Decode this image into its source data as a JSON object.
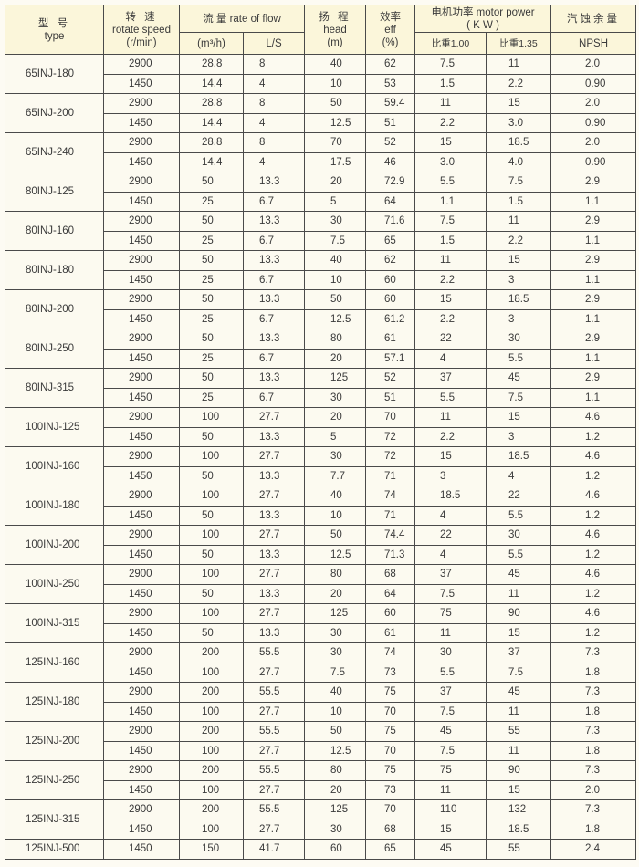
{
  "header": {
    "type_zh": "型 号",
    "type_en": "type",
    "speed_zh": "转 速",
    "speed_en": "rotate speed",
    "speed_unit": "(r/min)",
    "flow": "流 量 rate of flow",
    "flow_m3h": "(m³/h)",
    "flow_ls": "L/S",
    "head_zh": "扬 程",
    "head_en": "head",
    "head_unit": "(m)",
    "eff_zh": "效率",
    "eff_en": "eff",
    "eff_unit": "(%)",
    "power": "电机功率 motor power",
    "power_unit": "( K W )",
    "power_100": "比重1.00",
    "power_135": "比重1.35",
    "npsh_zh": "汽蚀余量",
    "npsh_en": "NPSH"
  },
  "models": [
    {
      "type": "65INJ-180",
      "rows": [
        [
          "2900",
          "28.8",
          "8",
          "40",
          "62",
          "7.5",
          "11",
          "2.0"
        ],
        [
          "1450",
          "14.4",
          "4",
          "10",
          "53",
          "1.5",
          "2.2",
          "0.90"
        ]
      ]
    },
    {
      "type": "65INJ-200",
      "rows": [
        [
          "2900",
          "28.8",
          "8",
          "50",
          "59.4",
          "11",
          "15",
          "2.0"
        ],
        [
          "1450",
          "14.4",
          "4",
          "12.5",
          "51",
          "2.2",
          "3.0",
          "0.90"
        ]
      ]
    },
    {
      "type": "65INJ-240",
      "rows": [
        [
          "2900",
          "28.8",
          "8",
          "70",
          "52",
          "15",
          "18.5",
          "2.0"
        ],
        [
          "1450",
          "14.4",
          "4",
          "17.5",
          "46",
          "3.0",
          "4.0",
          "0.90"
        ]
      ]
    },
    {
      "type": "80INJ-125",
      "rows": [
        [
          "2900",
          "50",
          "13.3",
          "20",
          "72.9",
          "5.5",
          "7.5",
          "2.9"
        ],
        [
          "1450",
          "25",
          "6.7",
          "5",
          "64",
          "1.1",
          "1.5",
          "1.1"
        ]
      ]
    },
    {
      "type": "80INJ-160",
      "rows": [
        [
          "2900",
          "50",
          "13.3",
          "30",
          "71.6",
          "7.5",
          "11",
          "2.9"
        ],
        [
          "1450",
          "25",
          "6.7",
          "7.5",
          "65",
          "1.5",
          "2.2",
          "1.1"
        ]
      ]
    },
    {
      "type": "80INJ-180",
      "rows": [
        [
          "2900",
          "50",
          "13.3",
          "40",
          "62",
          "11",
          "15",
          "2.9"
        ],
        [
          "1450",
          "25",
          "6.7",
          "10",
          "60",
          "2.2",
          "3",
          "1.1"
        ]
      ]
    },
    {
      "type": "80INJ-200",
      "rows": [
        [
          "2900",
          "50",
          "13.3",
          "50",
          "60",
          "15",
          "18.5",
          "2.9"
        ],
        [
          "1450",
          "25",
          "6.7",
          "12.5",
          "61.2",
          "2.2",
          "3",
          "1.1"
        ]
      ]
    },
    {
      "type": "80INJ-250",
      "rows": [
        [
          "2900",
          "50",
          "13.3",
          "80",
          "61",
          "22",
          "30",
          "2.9"
        ],
        [
          "1450",
          "25",
          "6.7",
          "20",
          "57.1",
          "4",
          "5.5",
          "1.1"
        ]
      ]
    },
    {
      "type": "80INJ-315",
      "rows": [
        [
          "2900",
          "50",
          "13.3",
          "125",
          "52",
          "37",
          "45",
          "2.9"
        ],
        [
          "1450",
          "25",
          "6.7",
          "30",
          "51",
          "5.5",
          "7.5",
          "1.1"
        ]
      ]
    },
    {
      "type": "100INJ-125",
      "rows": [
        [
          "2900",
          "100",
          "27.7",
          "20",
          "70",
          "11",
          "15",
          "4.6"
        ],
        [
          "1450",
          "50",
          "13.3",
          "5",
          "72",
          "2.2",
          "3",
          "1.2"
        ]
      ]
    },
    {
      "type": "100INJ-160",
      "rows": [
        [
          "2900",
          "100",
          "27.7",
          "30",
          "72",
          "15",
          "18.5",
          "4.6"
        ],
        [
          "1450",
          "50",
          "13.3",
          "7.7",
          "71",
          "3",
          "4",
          "1.2"
        ]
      ]
    },
    {
      "type": "100INJ-180",
      "rows": [
        [
          "2900",
          "100",
          "27.7",
          "40",
          "74",
          "18.5",
          "22",
          "4.6"
        ],
        [
          "1450",
          "50",
          "13.3",
          "10",
          "71",
          "4",
          "5.5",
          "1.2"
        ]
      ]
    },
    {
      "type": "100INJ-200",
      "rows": [
        [
          "2900",
          "100",
          "27.7",
          "50",
          "74.4",
          "22",
          "30",
          "4.6"
        ],
        [
          "1450",
          "50",
          "13.3",
          "12.5",
          "71.3",
          "4",
          "5.5",
          "1.2"
        ]
      ]
    },
    {
      "type": "100INJ-250",
      "rows": [
        [
          "2900",
          "100",
          "27.7",
          "80",
          "68",
          "37",
          "45",
          "4.6"
        ],
        [
          "1450",
          "50",
          "13.3",
          "20",
          "64",
          "7.5",
          "11",
          "1.2"
        ]
      ]
    },
    {
      "type": "100INJ-315",
      "rows": [
        [
          "2900",
          "100",
          "27.7",
          "125",
          "60",
          "75",
          "90",
          "4.6"
        ],
        [
          "1450",
          "50",
          "13.3",
          "30",
          "61",
          "11",
          "15",
          "1.2"
        ]
      ]
    },
    {
      "type": "125INJ-160",
      "rows": [
        [
          "2900",
          "200",
          "55.5",
          "30",
          "74",
          "30",
          "37",
          "7.3"
        ],
        [
          "1450",
          "100",
          "27.7",
          "7.5",
          "73",
          "5.5",
          "7.5",
          "1.8"
        ]
      ]
    },
    {
      "type": "125INJ-180",
      "rows": [
        [
          "2900",
          "200",
          "55.5",
          "40",
          "75",
          "37",
          "45",
          "7.3"
        ],
        [
          "1450",
          "100",
          "27.7",
          "10",
          "70",
          "7.5",
          "11",
          "1.8"
        ]
      ]
    },
    {
      "type": "125INJ-200",
      "rows": [
        [
          "2900",
          "200",
          "55.5",
          "50",
          "75",
          "45",
          "55",
          "7.3"
        ],
        [
          "1450",
          "100",
          "27.7",
          "12.5",
          "70",
          "7.5",
          "11",
          "1.8"
        ]
      ]
    },
    {
      "type": "125INJ-250",
      "rows": [
        [
          "2900",
          "200",
          "55.5",
          "80",
          "75",
          "75",
          "90",
          "7.3"
        ],
        [
          "1450",
          "100",
          "27.7",
          "20",
          "73",
          "11",
          "15",
          "2.0"
        ]
      ]
    },
    {
      "type": "125INJ-315",
      "rows": [
        [
          "2900",
          "200",
          "55.5",
          "125",
          "70",
          "110",
          "132",
          "7.3"
        ],
        [
          "1450",
          "100",
          "27.7",
          "30",
          "68",
          "15",
          "18.5",
          "1.8"
        ]
      ]
    },
    {
      "type": "125INJ-500",
      "rows": [
        [
          "1450",
          "150",
          "41.7",
          "60",
          "65",
          "45",
          "55",
          "2.4"
        ]
      ]
    }
  ]
}
